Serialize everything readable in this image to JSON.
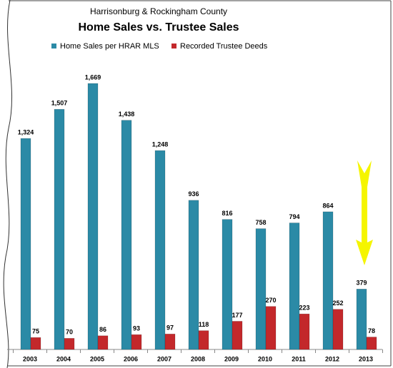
{
  "chart_data": {
    "type": "bar",
    "subtitle": "Harrisonburg & Rockingham County",
    "title": "Home Sales vs. Trustee Sales",
    "categories": [
      "2003",
      "2004",
      "2005",
      "2006",
      "2007",
      "2008",
      "2009",
      "2010",
      "2011",
      "2012",
      "2013"
    ],
    "series": [
      {
        "name": "Home Sales per HRAR MLS",
        "color": "#2b8aa6",
        "values": [
          1324,
          1507,
          1669,
          1438,
          1248,
          936,
          816,
          758,
          794,
          864,
          379
        ],
        "value_labels": [
          "1,324",
          "1,507",
          "1,669",
          "1,438",
          "1,248",
          "936",
          "816",
          "758",
          "794",
          "864",
          "379"
        ]
      },
      {
        "name": "Recorded Trustee Deeds",
        "color": "#c3282b",
        "values": [
          75,
          70,
          86,
          93,
          97,
          118,
          177,
          270,
          223,
          252,
          78
        ]
      }
    ]
  }
}
